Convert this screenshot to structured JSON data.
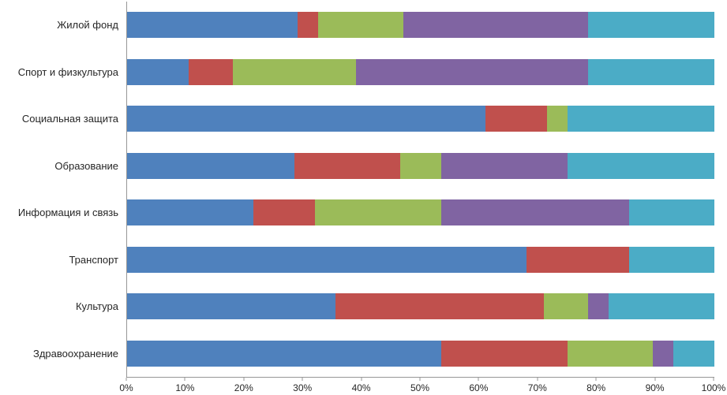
{
  "chart_data": {
    "type": "bar",
    "orientation": "horizontal",
    "stacked": true,
    "stacked_100_percent": true,
    "grid": false,
    "legend": "none",
    "xlim": [
      0,
      100
    ],
    "categories": [
      "Жилой фонд",
      "Спорт и физкультура",
      "Социальная защита",
      "Образование",
      "Информация и связь",
      "Транспорт",
      "Культура",
      "Здравоохранение"
    ],
    "series": [
      {
        "name": "blue",
        "color": "#4F81BD",
        "values": [
          29.0,
          10.5,
          61.0,
          28.5,
          21.5,
          68.0,
          35.5,
          53.5
        ]
      },
      {
        "name": "red",
        "color": "#C0504D",
        "values": [
          3.5,
          7.5,
          10.5,
          18.0,
          10.5,
          17.5,
          35.5,
          21.5
        ]
      },
      {
        "name": "green",
        "color": "#9BBB59",
        "values": [
          14.5,
          21.0,
          3.5,
          7.0,
          21.5,
          0,
          7.5,
          14.5
        ]
      },
      {
        "name": "purple",
        "color": "#8064A2",
        "values": [
          31.5,
          39.5,
          0,
          21.5,
          32.0,
          0,
          3.5,
          3.5
        ]
      },
      {
        "name": "teal",
        "color": "#4BACC6",
        "values": [
          21.5,
          21.5,
          25.0,
          25.0,
          14.5,
          14.5,
          18.0,
          7.0
        ]
      }
    ],
    "x_ticks": [
      "0%",
      "10%",
      "20%",
      "30%",
      "40%",
      "50%",
      "60%",
      "70%",
      "80%",
      "90%",
      "100%"
    ]
  }
}
